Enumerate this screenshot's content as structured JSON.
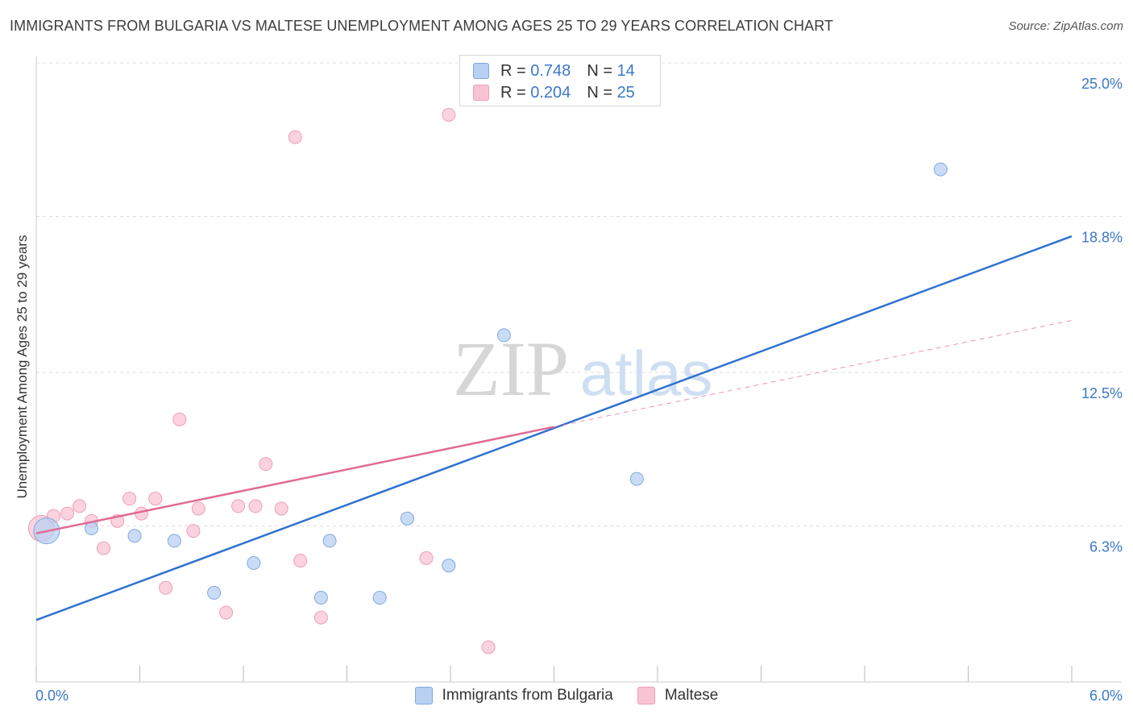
{
  "header": {
    "title": "IMMIGRANTS FROM BULGARIA VS MALTESE UNEMPLOYMENT AMONG AGES 25 TO 29 YEARS CORRELATION CHART",
    "source": "Source: ZipAtlas.com"
  },
  "watermark": {
    "zip": "ZIP",
    "atlas": "atlas"
  },
  "legend": {
    "rows": [
      {
        "r_label": "R =",
        "r_value": "0.748",
        "n_label": "N =",
        "n_value": "14"
      },
      {
        "r_label": "R =",
        "r_value": "0.204",
        "n_label": "N =",
        "n_value": "25"
      }
    ]
  },
  "colors": {
    "blue_fill": "#b8d0f2",
    "blue_stroke": "#7fa8e0",
    "blue_line": "#2f72d0",
    "pink_fill": "#f8c4d4",
    "pink_stroke": "#ee9db6",
    "pink_line": "#e06a94",
    "tick_label": "#3a78c9",
    "grid": "#dddddd"
  },
  "chart_data": {
    "type": "scatter",
    "title": "IMMIGRANTS FROM BULGARIA VS MALTESE UNEMPLOYMENT AMONG AGES 25 TO 29 YEARS CORRELATION CHART",
    "xlabel": "",
    "ylabel": "Unemployment Among Ages 25 to 29 years",
    "xlim": [
      0,
      6.0
    ],
    "ylim": [
      0,
      25.0
    ],
    "x_tick_labels": [
      "0.0%",
      "6.0%"
    ],
    "y_ticks": [
      6.3,
      12.5,
      18.8,
      25.0
    ],
    "y_tick_labels": [
      "6.3%",
      "12.5%",
      "18.8%",
      "25.0%"
    ],
    "grid": true,
    "legend_position": "top-center",
    "series": [
      {
        "name": "Immigrants from Bulgaria",
        "color": "#b8d0f2",
        "R": 0.748,
        "N": 14,
        "points": [
          {
            "x": 0.06,
            "y": 6.1,
            "size": "large"
          },
          {
            "x": 0.32,
            "y": 6.2
          },
          {
            "x": 0.57,
            "y": 5.9
          },
          {
            "x": 0.8,
            "y": 5.7
          },
          {
            "x": 1.03,
            "y": 3.6
          },
          {
            "x": 1.26,
            "y": 4.8
          },
          {
            "x": 1.65,
            "y": 3.4
          },
          {
            "x": 1.7,
            "y": 5.7
          },
          {
            "x": 1.99,
            "y": 3.4
          },
          {
            "x": 2.15,
            "y": 6.6
          },
          {
            "x": 2.39,
            "y": 4.7
          },
          {
            "x": 2.71,
            "y": 14.0
          },
          {
            "x": 3.48,
            "y": 8.2
          },
          {
            "x": 5.24,
            "y": 20.7
          }
        ],
        "trend": {
          "x0": 0.0,
          "y0": 2.5,
          "x1": 6.0,
          "y1": 18.0
        }
      },
      {
        "name": "Maltese",
        "color": "#f8c4d4",
        "R": 0.204,
        "N": 25,
        "points": [
          {
            "x": 0.03,
            "y": 6.2,
            "size": "large"
          },
          {
            "x": 0.1,
            "y": 6.7
          },
          {
            "x": 0.18,
            "y": 6.8
          },
          {
            "x": 0.25,
            "y": 7.1
          },
          {
            "x": 0.32,
            "y": 6.5
          },
          {
            "x": 0.39,
            "y": 5.4
          },
          {
            "x": 0.47,
            "y": 6.5
          },
          {
            "x": 0.54,
            "y": 7.4
          },
          {
            "x": 0.61,
            "y": 6.8
          },
          {
            "x": 0.69,
            "y": 7.4
          },
          {
            "x": 0.75,
            "y": 3.8
          },
          {
            "x": 0.83,
            "y": 10.6
          },
          {
            "x": 0.91,
            "y": 6.1
          },
          {
            "x": 0.94,
            "y": 7.0
          },
          {
            "x": 1.1,
            "y": 2.8
          },
          {
            "x": 1.17,
            "y": 7.1
          },
          {
            "x": 1.27,
            "y": 7.1
          },
          {
            "x": 1.33,
            "y": 8.8
          },
          {
            "x": 1.42,
            "y": 7.0
          },
          {
            "x": 1.5,
            "y": 22.0
          },
          {
            "x": 1.53,
            "y": 4.9
          },
          {
            "x": 1.65,
            "y": 2.6
          },
          {
            "x": 2.26,
            "y": 5.0
          },
          {
            "x": 2.39,
            "y": 22.9
          },
          {
            "x": 2.62,
            "y": 1.4
          }
        ],
        "trend": {
          "x0": 0.0,
          "y0": 6.0,
          "x1": 3.0,
          "y1": 10.3
        },
        "trend_extension": {
          "x0": 3.0,
          "y0": 10.3,
          "x1": 6.0,
          "y1": 14.6
        }
      }
    ]
  },
  "bottom_legend": {
    "items": [
      {
        "label": "Immigrants from Bulgaria"
      },
      {
        "label": "Maltese"
      }
    ]
  }
}
